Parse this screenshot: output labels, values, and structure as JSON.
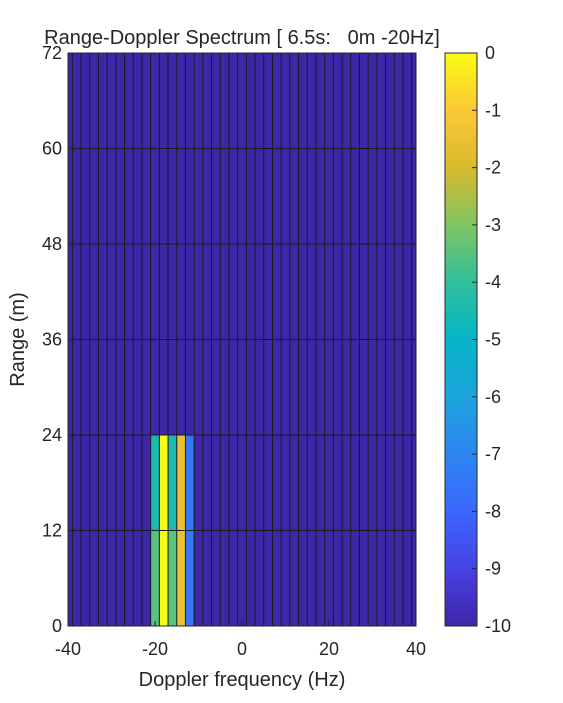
{
  "chart_data": {
    "type": "heatmap",
    "title": "Range-Doppler Spectrum [ 6.5s:   0m -20Hz]",
    "xlabel": "Doppler frequency (Hz)",
    "ylabel": "Range (m)",
    "xlim": [
      -40,
      40
    ],
    "ylim": [
      0,
      72
    ],
    "xticks": [
      -40,
      -20,
      0,
      20,
      40
    ],
    "yticks": [
      0,
      12,
      24,
      36,
      48,
      60,
      72
    ],
    "x_bin_width_hz": 2,
    "y_bin_height_m": 12,
    "background_value": -10,
    "cells": [
      {
        "x": -20,
        "y": 0,
        "value": -3.5
      },
      {
        "x": -18,
        "y": 0,
        "value": 0
      },
      {
        "x": -16,
        "y": 0,
        "value": -3.5
      },
      {
        "x": -14,
        "y": 0,
        "value": -1.5
      },
      {
        "x": -12,
        "y": 0,
        "value": -7.5
      },
      {
        "x": -20,
        "y": 12,
        "value": -4.5
      },
      {
        "x": -18,
        "y": 12,
        "value": 0
      },
      {
        "x": -16,
        "y": 12,
        "value": -4.5
      },
      {
        "x": -14,
        "y": 12,
        "value": -1.5
      },
      {
        "x": -12,
        "y": 12,
        "value": -7.5
      }
    ],
    "colorbar": {
      "limits": [
        -10,
        0
      ],
      "ticks": [
        0,
        -1,
        -2,
        -3,
        -4,
        -5,
        -6,
        -7,
        -8,
        -9,
        -10
      ],
      "colormap": "parula"
    },
    "grid": false
  }
}
